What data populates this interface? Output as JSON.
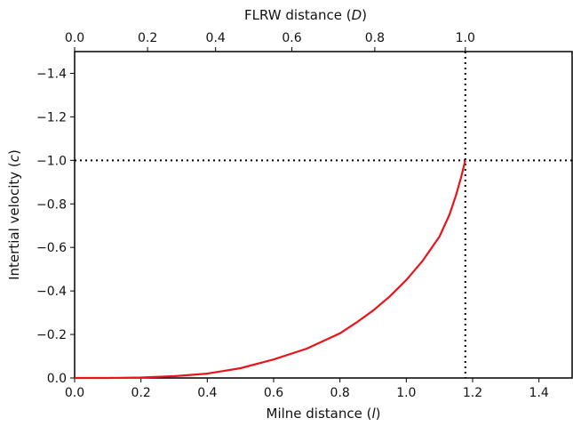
{
  "chart_data": {
    "type": "line",
    "xlabel": {
      "text": "Milne distance (",
      "var": "l",
      "close": ")"
    },
    "x2label": {
      "text": "FLRW distance (",
      "var": "D",
      "close": ")"
    },
    "ylabel": {
      "text": "Intertial velocity (",
      "var": "c",
      "close": ")"
    },
    "xlim": [
      0.0,
      1.5
    ],
    "ylim": [
      0.0,
      -1.5
    ],
    "x_ticks": [
      "0.0",
      "0.2",
      "0.4",
      "0.6",
      "0.8",
      "1.0",
      "1.2",
      "1.4"
    ],
    "y_ticks": [
      "0.0",
      "−0.2",
      "−0.4",
      "−0.6",
      "−0.8",
      "−1.0",
      "−1.2",
      "−1.4"
    ],
    "top_ticks": [
      {
        "label": "0.0",
        "D": 0.0
      },
      {
        "label": "0.2",
        "D": 0.2
      },
      {
        "label": "0.4",
        "D": 0.4
      },
      {
        "label": "0.6",
        "D": 0.6
      },
      {
        "label": "0.8",
        "D": 0.8
      },
      {
        "label": "1.0",
        "D": 1.0
      }
    ],
    "series": [
      {
        "color": "#e8141b",
        "points": [
          [
            0.0,
            0.0
          ],
          [
            0.1,
            -0.0002
          ],
          [
            0.2,
            -0.002
          ],
          [
            0.3,
            -0.008
          ],
          [
            0.4,
            -0.02
          ],
          [
            0.5,
            -0.045
          ],
          [
            0.6,
            -0.085
          ],
          [
            0.7,
            -0.135
          ],
          [
            0.8,
            -0.205
          ],
          [
            0.85,
            -0.255
          ],
          [
            0.9,
            -0.31
          ],
          [
            0.95,
            -0.375
          ],
          [
            1.0,
            -0.45
          ],
          [
            1.05,
            -0.54
          ],
          [
            1.1,
            -0.65
          ],
          [
            1.13,
            -0.75
          ],
          [
            1.15,
            -0.84
          ],
          [
            1.165,
            -0.92
          ],
          [
            1.178,
            -1.0
          ]
        ]
      }
    ],
    "reference_lines": [
      {
        "orientation": "vertical",
        "x": 1.178,
        "style": "dotted",
        "color": "#000000"
      },
      {
        "orientation": "horizontal",
        "y": -1.0,
        "style": "dotted",
        "color": "#000000"
      }
    ],
    "grid": false
  }
}
